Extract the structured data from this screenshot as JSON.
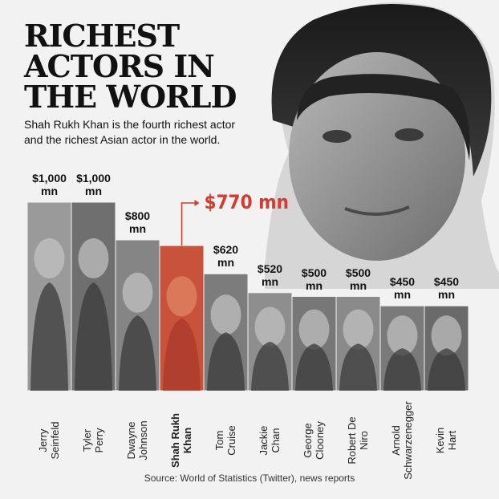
{
  "chart_data": {
    "type": "bar",
    "title": "RICHEST\nACTORS IN\nTHE WORLD",
    "subtitle": "Shah Rukh Khan is the fourth richest actor\nand the richest Asian actor in the world.",
    "categories": [
      "Jerry\nSeinfeld",
      "Tyler\nPerry",
      "Dwayne\nJohnson",
      "Shah Rukh\nKhan",
      "Tom\nCruise",
      "Jackie\nChan",
      "George\nClooney",
      "Robert De\nNiro",
      "Arnold\nSchwarzenegger",
      "Kevin\nHart"
    ],
    "values": [
      1000,
      1000,
      800,
      770,
      620,
      520,
      500,
      500,
      450,
      450
    ],
    "value_labels": [
      "$1,000 mn",
      "$1,000 mn",
      "$800 mn",
      "$770 mn",
      "$620 mn",
      "$520 mn",
      "$500 mn",
      "$500 mn",
      "$450 mn",
      "$450 mn"
    ],
    "colors": [
      "#9a9a9a",
      "#6f6f6f",
      "#858585",
      "#c9523a",
      "#7c7c7c",
      "#8e8e8e",
      "#777777",
      "#8a8a8a",
      "#7a7a7a",
      "#6a6a6a"
    ],
    "highlight_index": 3,
    "source": "Source: World of Statistics (Twitter), news reports"
  }
}
